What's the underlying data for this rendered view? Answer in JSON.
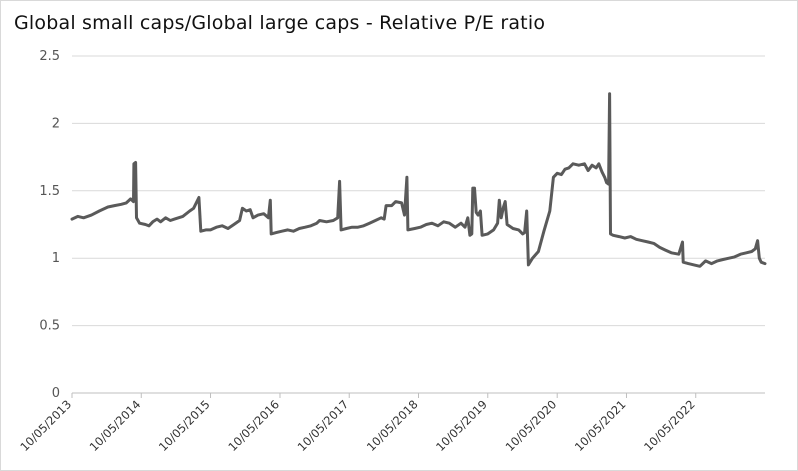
{
  "chart_data": {
    "type": "line",
    "title": "Global small caps/Global large caps - Relative P/E ratio",
    "xlabel": "",
    "ylabel": "",
    "ylim": [
      0,
      2.5
    ],
    "yticks": [
      0,
      0.5,
      1,
      1.5,
      2,
      2.5
    ],
    "ytick_labels": [
      "0",
      "0.5",
      "1",
      "1.5",
      "2",
      "2.5"
    ],
    "xlim": [
      "2013-05-10",
      "2023-05-10"
    ],
    "xticks": [
      "2013-05-10",
      "2014-05-10",
      "2015-05-10",
      "2016-05-10",
      "2017-05-10",
      "2018-05-10",
      "2019-05-10",
      "2020-05-10",
      "2021-05-10",
      "2022-05-10"
    ],
    "xtick_labels": [
      "10/05/2013",
      "10/05/2014",
      "10/05/2015",
      "10/05/2016",
      "10/05/2017",
      "10/05/2018",
      "10/05/2019",
      "10/05/2020",
      "10/05/2021",
      "10/05/2022"
    ],
    "grid": "horizontal",
    "legend": "none",
    "line_color": "#5a5a5a",
    "series": [
      {
        "points": [
          [
            "2013-05-10",
            1.29
          ],
          [
            "2013-06-10",
            1.31
          ],
          [
            "2013-07-10",
            1.3
          ],
          [
            "2013-08-20",
            1.32
          ],
          [
            "2013-10-01",
            1.35
          ],
          [
            "2013-11-15",
            1.38
          ],
          [
            "2013-12-20",
            1.39
          ],
          [
            "2014-01-25",
            1.4
          ],
          [
            "2014-02-20",
            1.41
          ],
          [
            "2014-03-15",
            1.44
          ],
          [
            "2014-03-30",
            1.42
          ],
          [
            "2014-04-01",
            1.7
          ],
          [
            "2014-04-10",
            1.71
          ],
          [
            "2014-04-15",
            1.3
          ],
          [
            "2014-05-01",
            1.26
          ],
          [
            "2014-06-01",
            1.25
          ],
          [
            "2014-06-20",
            1.24
          ],
          [
            "2014-07-10",
            1.27
          ],
          [
            "2014-08-01",
            1.29
          ],
          [
            "2014-08-20",
            1.27
          ],
          [
            "2014-09-15",
            1.3
          ],
          [
            "2014-10-10",
            1.28
          ],
          [
            "2014-11-01",
            1.29
          ],
          [
            "2014-12-15",
            1.31
          ],
          [
            "2015-01-20",
            1.35
          ],
          [
            "2015-02-10",
            1.37
          ],
          [
            "2015-03-10",
            1.45
          ],
          [
            "2015-03-20",
            1.2
          ],
          [
            "2015-04-15",
            1.21
          ],
          [
            "2015-05-10",
            1.21
          ],
          [
            "2015-06-10",
            1.23
          ],
          [
            "2015-07-10",
            1.24
          ],
          [
            "2015-08-10",
            1.22
          ],
          [
            "2015-09-10",
            1.25
          ],
          [
            "2015-10-10",
            1.28
          ],
          [
            "2015-10-25",
            1.37
          ],
          [
            "2015-11-15",
            1.35
          ],
          [
            "2015-12-05",
            1.36
          ],
          [
            "2015-12-20",
            1.3
          ],
          [
            "2016-01-15",
            1.32
          ],
          [
            "2016-02-15",
            1.33
          ],
          [
            "2016-03-10",
            1.3
          ],
          [
            "2016-03-20",
            1.43
          ],
          [
            "2016-03-25",
            1.18
          ],
          [
            "2016-04-20",
            1.19
          ],
          [
            "2016-05-20",
            1.2
          ],
          [
            "2016-06-20",
            1.21
          ],
          [
            "2016-07-20",
            1.2
          ],
          [
            "2016-08-20",
            1.22
          ],
          [
            "2016-09-20",
            1.23
          ],
          [
            "2016-10-20",
            1.24
          ],
          [
            "2016-11-20",
            1.26
          ],
          [
            "2016-12-05",
            1.28
          ],
          [
            "2017-01-10",
            1.27
          ],
          [
            "2017-02-15",
            1.28
          ],
          [
            "2017-03-10",
            1.3
          ],
          [
            "2017-03-20",
            1.57
          ],
          [
            "2017-03-28",
            1.21
          ],
          [
            "2017-04-25",
            1.22
          ],
          [
            "2017-05-25",
            1.23
          ],
          [
            "2017-06-25",
            1.23
          ],
          [
            "2017-07-25",
            1.24
          ],
          [
            "2017-08-25",
            1.26
          ],
          [
            "2017-09-25",
            1.28
          ],
          [
            "2017-10-25",
            1.3
          ],
          [
            "2017-11-10",
            1.29
          ],
          [
            "2017-11-20",
            1.39
          ],
          [
            "2017-12-20",
            1.39
          ],
          [
            "2018-01-10",
            1.42
          ],
          [
            "2018-02-10",
            1.41
          ],
          [
            "2018-02-25",
            1.32
          ],
          [
            "2018-03-10",
            1.6
          ],
          [
            "2018-03-15",
            1.21
          ],
          [
            "2018-04-20",
            1.22
          ],
          [
            "2018-05-20",
            1.23
          ],
          [
            "2018-06-20",
            1.25
          ],
          [
            "2018-07-20",
            1.26
          ],
          [
            "2018-08-20",
            1.24
          ],
          [
            "2018-09-20",
            1.27
          ],
          [
            "2018-10-20",
            1.26
          ],
          [
            "2018-11-20",
            1.23
          ],
          [
            "2018-12-20",
            1.26
          ],
          [
            "2019-01-10",
            1.23
          ],
          [
            "2019-01-25",
            1.3
          ],
          [
            "2019-02-05",
            1.17
          ],
          [
            "2019-02-15",
            1.18
          ],
          [
            "2019-02-20",
            1.52
          ],
          [
            "2019-03-01",
            1.52
          ],
          [
            "2019-03-10",
            1.34
          ],
          [
            "2019-03-20",
            1.32
          ],
          [
            "2019-04-01",
            1.35
          ],
          [
            "2019-04-10",
            1.17
          ],
          [
            "2019-05-10",
            1.18
          ],
          [
            "2019-06-10",
            1.21
          ],
          [
            "2019-07-01",
            1.26
          ],
          [
            "2019-07-10",
            1.43
          ],
          [
            "2019-07-20",
            1.3
          ],
          [
            "2019-08-01",
            1.38
          ],
          [
            "2019-08-10",
            1.42
          ],
          [
            "2019-08-20",
            1.25
          ],
          [
            "2019-09-20",
            1.22
          ],
          [
            "2019-10-20",
            1.21
          ],
          [
            "2019-11-10",
            1.18
          ],
          [
            "2019-11-20",
            1.19
          ],
          [
            "2019-12-01",
            1.35
          ],
          [
            "2019-12-10",
            0.95
          ],
          [
            "2020-01-01",
            1.0
          ],
          [
            "2020-02-01",
            1.05
          ],
          [
            "2020-03-01",
            1.2
          ],
          [
            "2020-04-01",
            1.35
          ],
          [
            "2020-04-20",
            1.6
          ],
          [
            "2020-05-10",
            1.63
          ],
          [
            "2020-06-01",
            1.62
          ],
          [
            "2020-06-20",
            1.66
          ],
          [
            "2020-07-10",
            1.67
          ],
          [
            "2020-08-01",
            1.7
          ],
          [
            "2020-09-01",
            1.69
          ],
          [
            "2020-10-01",
            1.7
          ],
          [
            "2020-10-20",
            1.65
          ],
          [
            "2020-11-10",
            1.69
          ],
          [
            "2020-12-01",
            1.67
          ],
          [
            "2020-12-15",
            1.7
          ],
          [
            "2021-01-01",
            1.64
          ],
          [
            "2021-01-15",
            1.6
          ],
          [
            "2021-01-25",
            1.56
          ],
          [
            "2021-02-05",
            1.55
          ],
          [
            "2021-02-10",
            2.22
          ],
          [
            "2021-02-15",
            1.18
          ],
          [
            "2021-03-01",
            1.17
          ],
          [
            "2021-04-01",
            1.16
          ],
          [
            "2021-05-01",
            1.15
          ],
          [
            "2021-06-01",
            1.16
          ],
          [
            "2021-07-01",
            1.14
          ],
          [
            "2021-08-01",
            1.13
          ],
          [
            "2021-09-01",
            1.12
          ],
          [
            "2021-10-01",
            1.11
          ],
          [
            "2021-11-01",
            1.08
          ],
          [
            "2021-12-01",
            1.06
          ],
          [
            "2022-01-01",
            1.04
          ],
          [
            "2022-02-10",
            1.03
          ],
          [
            "2022-03-01",
            1.12
          ],
          [
            "2022-03-05",
            0.97
          ],
          [
            "2022-04-01",
            0.96
          ],
          [
            "2022-05-01",
            0.95
          ],
          [
            "2022-06-01",
            0.94
          ],
          [
            "2022-07-01",
            0.98
          ],
          [
            "2022-08-01",
            0.96
          ],
          [
            "2022-09-01",
            0.98
          ],
          [
            "2022-10-01",
            0.99
          ],
          [
            "2022-11-01",
            1.0
          ],
          [
            "2022-12-01",
            1.01
          ],
          [
            "2023-01-01",
            1.03
          ],
          [
            "2023-02-01",
            1.04
          ],
          [
            "2023-03-01",
            1.05
          ],
          [
            "2023-03-20",
            1.07
          ],
          [
            "2023-04-01",
            1.13
          ],
          [
            "2023-04-10",
            1.0
          ],
          [
            "2023-04-20",
            0.97
          ],
          [
            "2023-05-10",
            0.96
          ]
        ]
      }
    ]
  }
}
